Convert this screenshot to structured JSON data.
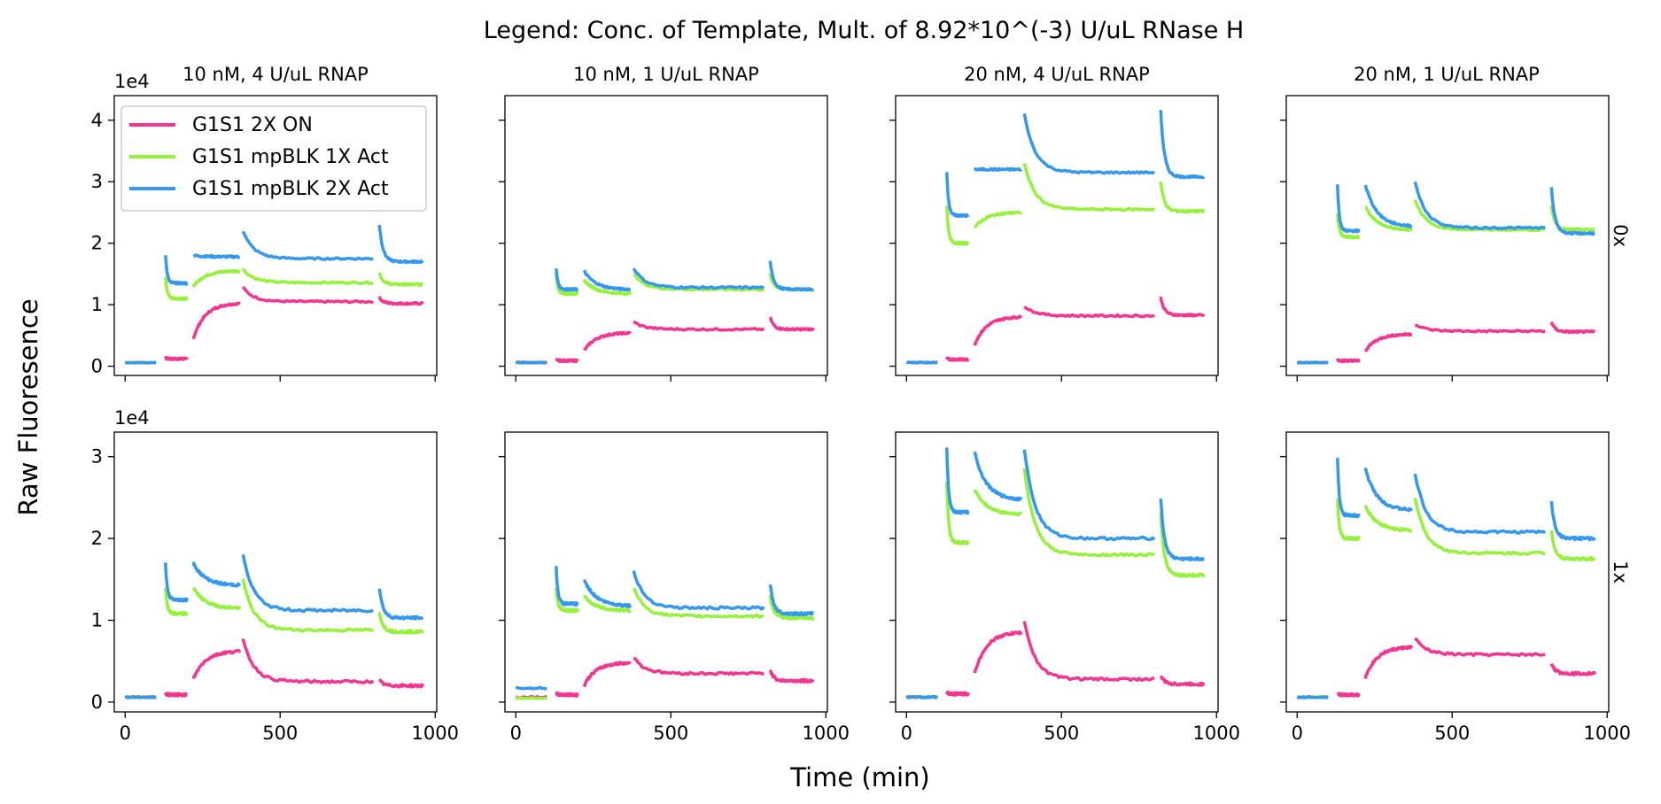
{
  "figure": {
    "title": "Legend: Conc. of Template, Mult. of 8.92*10^(-3) U/uL RNase H",
    "xlabel": "Time (min)",
    "ylabel": "Raw Fluoresence",
    "col_titles": [
      "10 nM, 4 U/uL RNAP",
      "10 nM, 1 U/uL RNAP",
      "20 nM, 4 U/uL RNAP",
      "20 nM, 1 U/uL RNAP"
    ],
    "row_labels": [
      "0x",
      "1x"
    ],
    "offset_labels": [
      "1e4",
      "1e4"
    ]
  },
  "legend": {
    "placement": "upper-left of first panel",
    "items": [
      {
        "label": "G1S1 2X ON",
        "color": "#f5358f"
      },
      {
        "label": "G1S1 mpBLK 1X Act",
        "color": "#95f23a"
      },
      {
        "label": "G1S1 mpBLK 2X Act",
        "color": "#3497f0"
      }
    ]
  },
  "chart_data": {
    "type": "line",
    "grid": false,
    "layout": "2 rows x 4 columns, shared x and y per row",
    "xlim": [
      -35,
      1005
    ],
    "x_ticks": [
      0,
      500,
      1000
    ],
    "x_tick_labels": [
      "0",
      "500",
      "1000"
    ],
    "rows": [
      {
        "ylim": [
          -0.15,
          4.4
        ],
        "y_ticks": [
          0,
          1,
          2,
          3,
          4
        ],
        "y_tick_labels": [
          "0",
          "1",
          "2",
          "3",
          "4"
        ],
        "y_multiplier": 10000
      },
      {
        "ylim": [
          -0.12,
          3.3
        ],
        "y_ticks": [
          0,
          1,
          2,
          3
        ],
        "y_tick_labels": [
          "0",
          "1",
          "2",
          "3"
        ],
        "y_multiplier": 10000
      }
    ],
    "segments": [
      {
        "range": [
          0,
          100
        ],
        "series": "blue"
      },
      {
        "range": [
          130,
          200
        ]
      },
      {
        "range": [
          220,
          370
        ]
      },
      {
        "range": [
          380,
          800
        ]
      },
      {
        "range": [
          820,
          960
        ]
      }
    ],
    "panels": [
      {
        "row": 0,
        "col": 0,
        "series": [
          {
            "name": "G1S1 2X ON",
            "pre": 0.06,
            "seg": [
              [
                0.13,
                0.12
              ],
              [
                0.45,
                1.02
              ],
              [
                1.28,
                1.05
              ],
              [
                1.12,
                1.02
              ]
            ]
          },
          {
            "name": "G1S1 mpBLK 1X Act",
            "pre": 0.06,
            "seg": [
              [
                1.45,
                1.1
              ],
              [
                1.3,
                1.55
              ],
              [
                1.58,
                1.36
              ],
              [
                1.52,
                1.33
              ]
            ]
          },
          {
            "name": "G1S1 mpBLK 2X Act",
            "pre": 0.06,
            "seg": [
              [
                1.8,
                1.35
              ],
              [
                1.8,
                1.78
              ],
              [
                2.2,
                1.75
              ],
              [
                2.3,
                1.7
              ]
            ]
          }
        ]
      },
      {
        "row": 0,
        "col": 1,
        "series": [
          {
            "name": "G1S1 2X ON",
            "pre": 0.06,
            "seg": [
              [
                0.1,
                0.09
              ],
              [
                0.25,
                0.54
              ],
              [
                0.72,
                0.6
              ],
              [
                0.8,
                0.6
              ]
            ]
          },
          {
            "name": "G1S1 mpBLK 1X Act",
            "pre": 0.06,
            "seg": [
              [
                1.5,
                1.18
              ],
              [
                1.4,
                1.18
              ],
              [
                1.5,
                1.25
              ],
              [
                1.5,
                1.25
              ]
            ]
          },
          {
            "name": "G1S1 mpBLK 2X Act",
            "pre": 0.06,
            "seg": [
              [
                1.6,
                1.25
              ],
              [
                1.55,
                1.25
              ],
              [
                1.6,
                1.28
              ],
              [
                1.7,
                1.25
              ]
            ]
          }
        ]
      },
      {
        "row": 0,
        "col": 2,
        "series": [
          {
            "name": "G1S1 2X ON",
            "pre": 0.06,
            "seg": [
              [
                0.12,
                0.11
              ],
              [
                0.35,
                0.8
              ],
              [
                0.98,
                0.82
              ],
              [
                1.12,
                0.83
              ]
            ]
          },
          {
            "name": "G1S1 mpBLK 1X Act",
            "pre": 0.06,
            "seg": [
              [
                2.6,
                2.0
              ],
              [
                2.25,
                2.5
              ],
              [
                3.3,
                2.55
              ],
              [
                3.0,
                2.52
              ]
            ]
          },
          {
            "name": "G1S1 mpBLK 2X Act",
            "pre": 0.06,
            "seg": [
              [
                3.15,
                2.45
              ],
              [
                3.2,
                3.2
              ],
              [
                4.1,
                3.15
              ],
              [
                4.15,
                3.08
              ]
            ]
          }
        ]
      },
      {
        "row": 0,
        "col": 3,
        "series": [
          {
            "name": "G1S1 2X ON",
            "pre": 0.06,
            "seg": [
              [
                0.1,
                0.09
              ],
              [
                0.25,
                0.52
              ],
              [
                0.68,
                0.57
              ],
              [
                0.72,
                0.56
              ]
            ]
          },
          {
            "name": "G1S1 mpBLK 1X Act",
            "pre": 0.06,
            "seg": [
              [
                2.5,
                2.1
              ],
              [
                2.6,
                2.22
              ],
              [
                2.7,
                2.22
              ],
              [
                2.6,
                2.22
              ]
            ]
          },
          {
            "name": "G1S1 mpBLK 2X Act",
            "pre": 0.06,
            "seg": [
              [
                2.95,
                2.2
              ],
              [
                2.95,
                2.28
              ],
              [
                3.0,
                2.25
              ],
              [
                2.9,
                2.16
              ]
            ]
          }
        ]
      },
      {
        "row": 1,
        "col": 0,
        "series": [
          {
            "name": "G1S1 2X ON",
            "pre": 0.06,
            "seg": [
              [
                0.1,
                0.09
              ],
              [
                0.28,
                0.62
              ],
              [
                0.78,
                0.25
              ],
              [
                0.27,
                0.2
              ]
            ]
          },
          {
            "name": "G1S1 mpBLK 1X Act",
            "pre": 0.06,
            "seg": [
              [
                1.4,
                1.08
              ],
              [
                1.4,
                1.15
              ],
              [
                1.5,
                0.88
              ],
              [
                1.1,
                0.86
              ]
            ]
          },
          {
            "name": "G1S1 mpBLK 2X Act",
            "pre": 0.06,
            "seg": [
              [
                1.7,
                1.25
              ],
              [
                1.7,
                1.43
              ],
              [
                1.8,
                1.12
              ],
              [
                1.4,
                1.03
              ]
            ]
          }
        ]
      },
      {
        "row": 1,
        "col": 1,
        "series": [
          {
            "name": "G1S1 2X ON",
            "pre": 0.06,
            "seg": [
              [
                0.1,
                0.09
              ],
              [
                0.2,
                0.48
              ],
              [
                0.55,
                0.35
              ],
              [
                0.4,
                0.26
              ]
            ]
          },
          {
            "name": "G1S1 mpBLK 1X Act",
            "pre": 0.05,
            "seg": [
              [
                1.4,
                1.12
              ],
              [
                1.3,
                1.12
              ],
              [
                1.4,
                1.05
              ],
              [
                1.3,
                1.03
              ]
            ]
          },
          {
            "name": "G1S1 mpBLK 2X Act",
            "pre": 0.17,
            "seg": [
              [
                1.65,
                1.2
              ],
              [
                1.5,
                1.18
              ],
              [
                1.6,
                1.15
              ],
              [
                1.45,
                1.08
              ]
            ]
          }
        ]
      },
      {
        "row": 1,
        "col": 2,
        "series": [
          {
            "name": "G1S1 2X ON",
            "pre": 0.06,
            "seg": [
              [
                0.12,
                0.1
              ],
              [
                0.35,
                0.85
              ],
              [
                1.0,
                0.28
              ],
              [
                0.33,
                0.22
              ]
            ]
          },
          {
            "name": "G1S1 mpBLK 1X Act",
            "pre": 0.06,
            "seg": [
              [
                2.7,
                1.95
              ],
              [
                2.6,
                2.3
              ],
              [
                2.85,
                1.8
              ],
              [
                2.3,
                1.55
              ]
            ]
          },
          {
            "name": "G1S1 mpBLK 2X Act",
            "pre": 0.06,
            "seg": [
              [
                3.1,
                2.32
              ],
              [
                3.05,
                2.48
              ],
              [
                3.1,
                2.0
              ],
              [
                2.5,
                1.75
              ]
            ]
          }
        ]
      },
      {
        "row": 1,
        "col": 3,
        "series": [
          {
            "name": "G1S1 2X ON",
            "pre": 0.06,
            "seg": [
              [
                0.1,
                0.09
              ],
              [
                0.3,
                0.67
              ],
              [
                0.78,
                0.58
              ],
              [
                0.48,
                0.35
              ]
            ]
          },
          {
            "name": "G1S1 mpBLK 1X Act",
            "pre": 0.06,
            "seg": [
              [
                2.5,
                2.0
              ],
              [
                2.4,
                2.1
              ],
              [
                2.5,
                1.82
              ],
              [
                2.1,
                1.75
              ]
            ]
          },
          {
            "name": "G1S1 mpBLK 2X Act",
            "pre": 0.06,
            "seg": [
              [
                3.0,
                2.28
              ],
              [
                2.85,
                2.35
              ],
              [
                2.8,
                2.08
              ],
              [
                2.45,
                2.0
              ]
            ]
          }
        ]
      }
    ]
  }
}
